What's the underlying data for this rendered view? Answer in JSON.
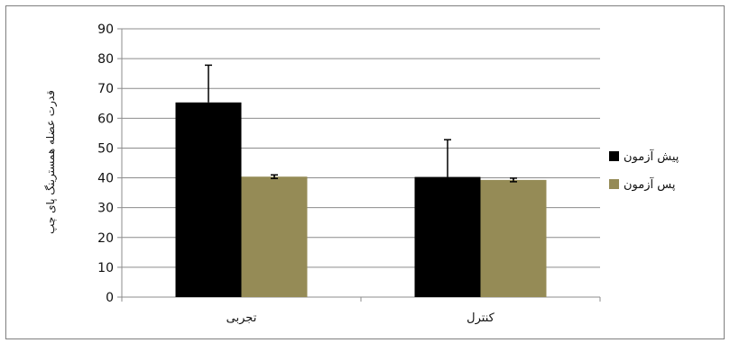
{
  "chart_data": {
    "type": "bar",
    "title": "",
    "xlabel": "",
    "ylabel": "قدرت عضله همسترینگ پای چپ",
    "ylim": [
      0,
      90
    ],
    "yticks": [
      0,
      10,
      20,
      30,
      40,
      50,
      60,
      70,
      80,
      90
    ],
    "grid": true,
    "legend_position": "right",
    "categories": [
      "تجربی",
      "کنترل"
    ],
    "series": [
      {
        "name": "پیش آزمون",
        "color": "#000000",
        "values": [
          65.3,
          40.3
        ],
        "errors": [
          12.5,
          12.5
        ]
      },
      {
        "name": "پس آزمون",
        "color": "#958b56",
        "values": [
          40.4,
          39.3
        ],
        "errors": [
          0.6,
          0.6
        ]
      }
    ]
  }
}
